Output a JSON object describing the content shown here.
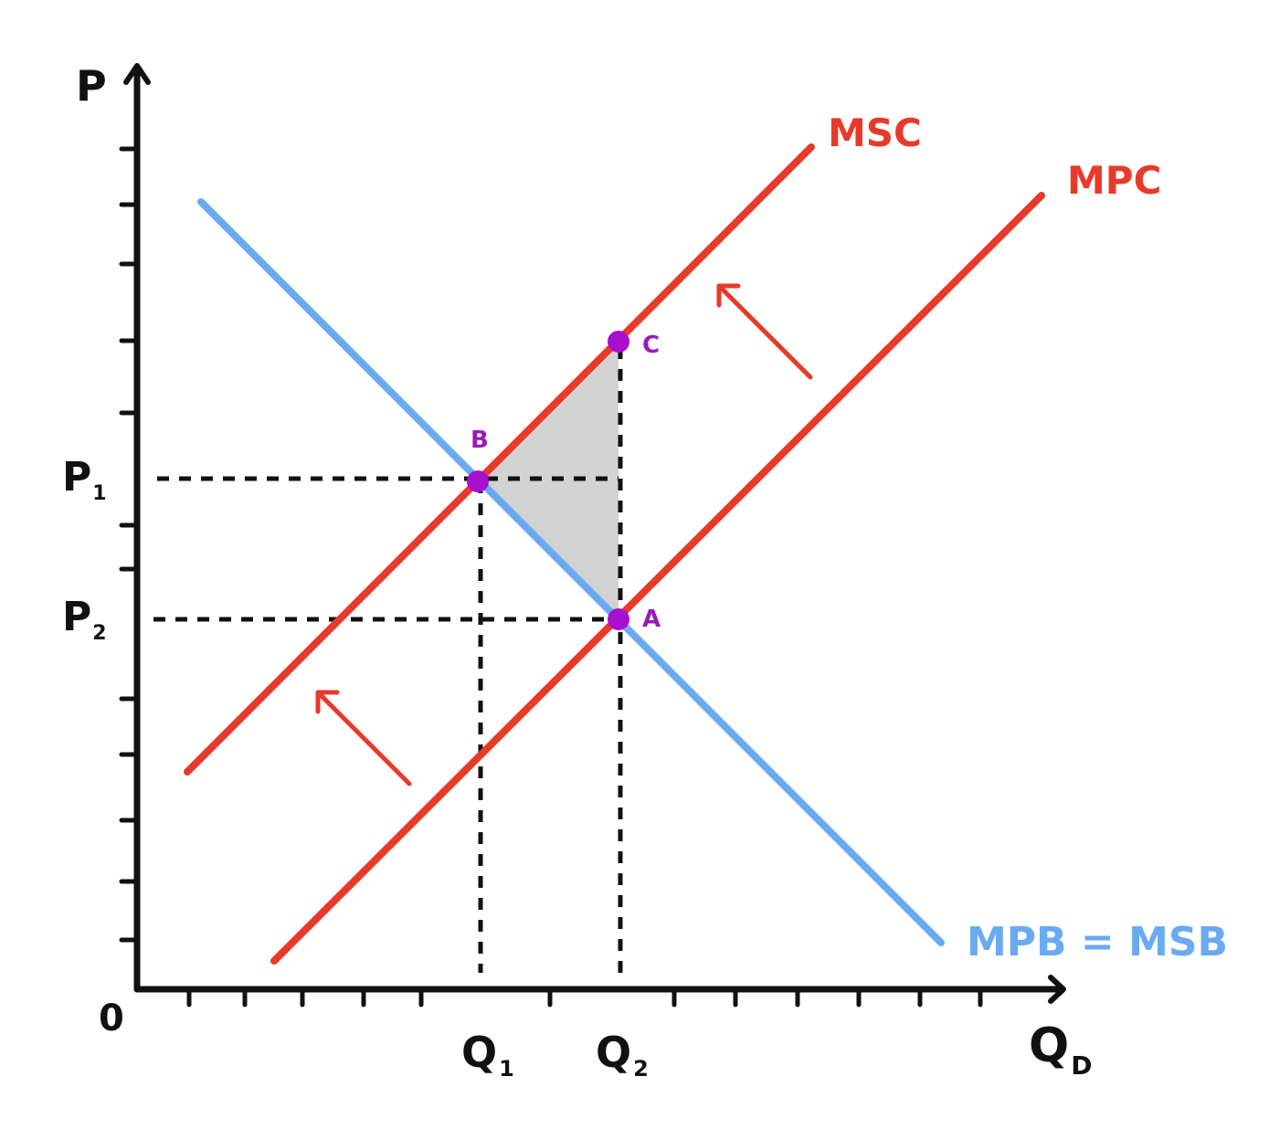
{
  "axes": {
    "y_label": "P",
    "x_label_main": "Q",
    "x_label_sub": "D",
    "origin": "0"
  },
  "price_labels": {
    "p1_main": "P",
    "p1_sub": "1",
    "p2_main": "P",
    "p2_sub": "2"
  },
  "quantity_labels": {
    "q1_main": "Q",
    "q1_sub": "1",
    "q2_main": "Q",
    "q2_sub": "2"
  },
  "curves": {
    "msc": "MSC",
    "mpc": "MPC",
    "demand": "MPB = MSB"
  },
  "points": {
    "a": "A",
    "b": "B",
    "c": "C"
  },
  "colors": {
    "supply": "#e8392a",
    "demand": "#6aaaf0",
    "point": "#a80fcf",
    "point_label": "#9a1ab8",
    "shade": "#d3d3d3",
    "axis": "#111111"
  }
}
